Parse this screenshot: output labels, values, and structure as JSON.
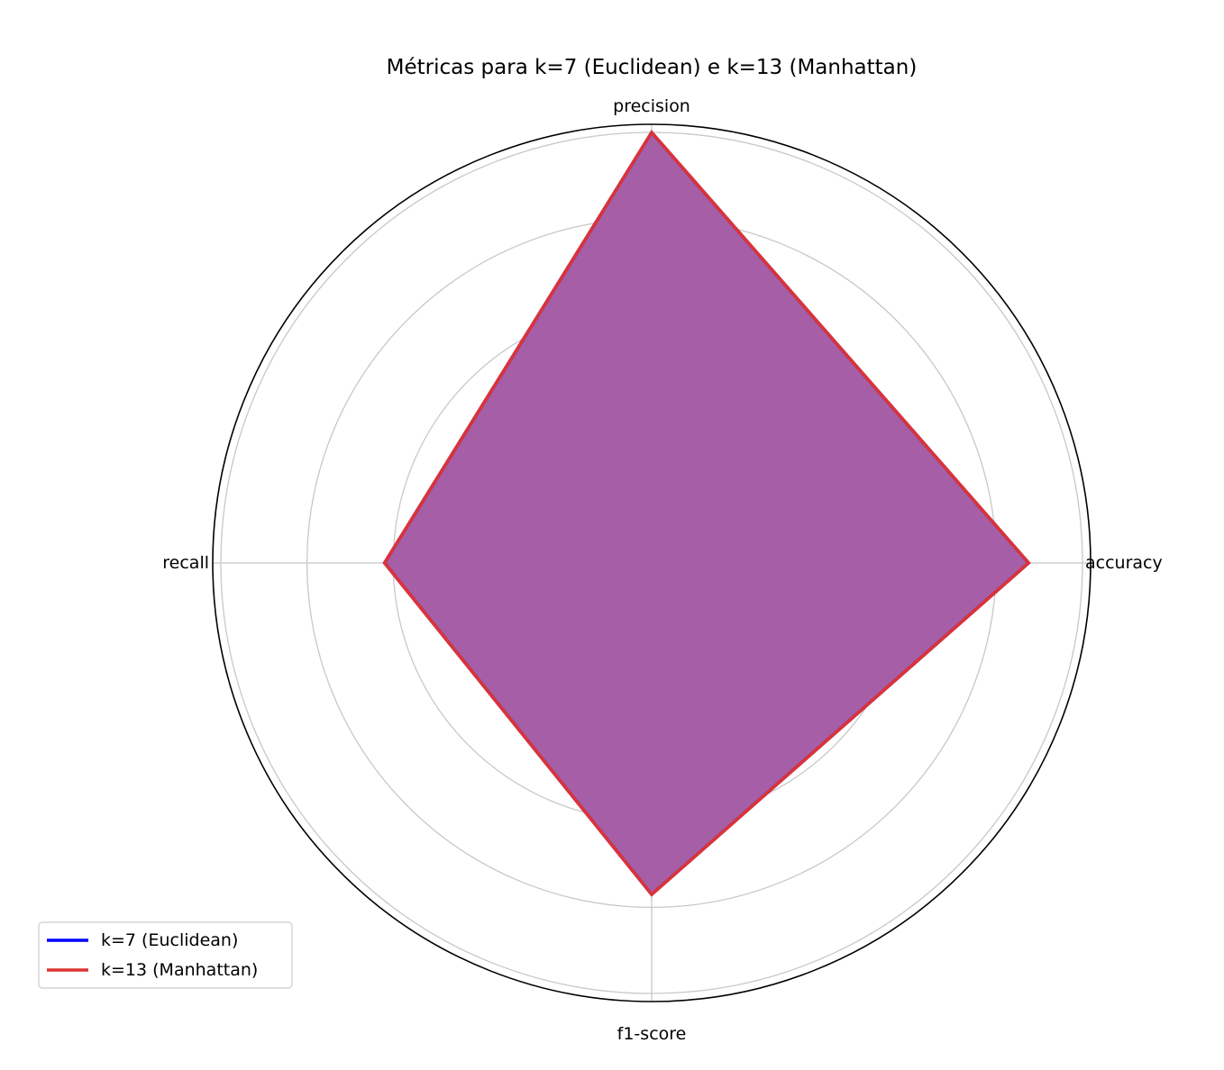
{
  "chart_data": {
    "type": "radar",
    "title": "Métricas para k=7 (Euclidean) e k=13 (Manhattan)",
    "axes": [
      "accuracy",
      "precision",
      "recall",
      "f1-score"
    ],
    "rlim": [
      0,
      1.0
    ],
    "rticks": [
      0.2,
      0.4,
      0.6,
      0.8,
      1.0
    ],
    "grid": true,
    "legend_position": "lower-left",
    "series": [
      {
        "name": "k=7 (Euclidean)",
        "values": [
          0.875,
          1.0,
          0.62,
          0.77
        ],
        "color": "#0000ff"
      },
      {
        "name": "k=13 (Manhattan)",
        "values": [
          0.875,
          1.0,
          0.62,
          0.77
        ],
        "color": "#dd3333"
      }
    ],
    "fill_color": "#c690bb"
  }
}
